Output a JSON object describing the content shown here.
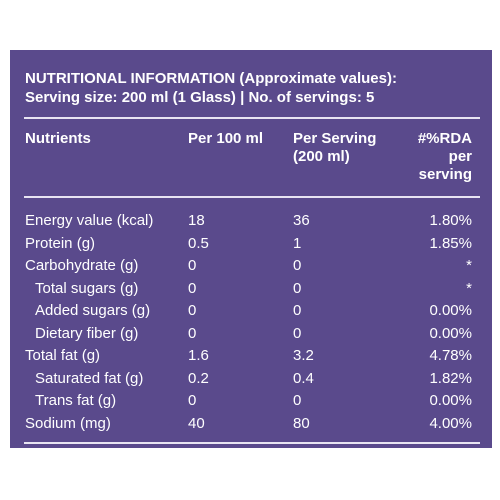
{
  "header": {
    "title": [
      "NUTRITIONAL INFORMATION (Approximate values):",
      "Serving size: 200 ml (1 Glass) | No. of servings: 5"
    ]
  },
  "table": {
    "columns": [
      [
        "Nutrients"
      ],
      [
        "Per 100 ml"
      ],
      [
        "Per Serving",
        "(200 ml)"
      ],
      [
        "#%RDA",
        "per",
        "serving"
      ]
    ],
    "rows": [
      {
        "cells": [
          "Energy value (kcal)",
          "18",
          "36",
          "1.80%"
        ]
      },
      {
        "cells": [
          "Protein (g)",
          "0.5",
          "1",
          "1.85%"
        ]
      },
      {
        "cells": [
          "Carbohydrate (g)",
          "0",
          "0",
          "*"
        ]
      },
      {
        "cells": [
          "Total sugars (g)",
          "0",
          "0",
          "*"
        ],
        "sub": true
      },
      {
        "cells": [
          "Added sugars (g)",
          "0",
          "0",
          "0.00%"
        ],
        "sub": true
      },
      {
        "cells": [
          "Dietary fiber (g)",
          "0",
          "0",
          "0.00%"
        ],
        "sub": true
      },
      {
        "cells": [
          "Total fat (g)",
          "1.6",
          "3.2",
          "4.78%"
        ]
      },
      {
        "cells": [
          "Saturated fat (g)",
          "0.2",
          "0.4",
          "1.82%"
        ],
        "sub": true
      },
      {
        "cells": [
          "Trans fat (g)",
          "0",
          "0",
          "0.00%"
        ],
        "sub": true
      },
      {
        "cells": [
          "Sodium (mg)",
          "40",
          "80",
          "4.00%"
        ]
      }
    ]
  }
}
